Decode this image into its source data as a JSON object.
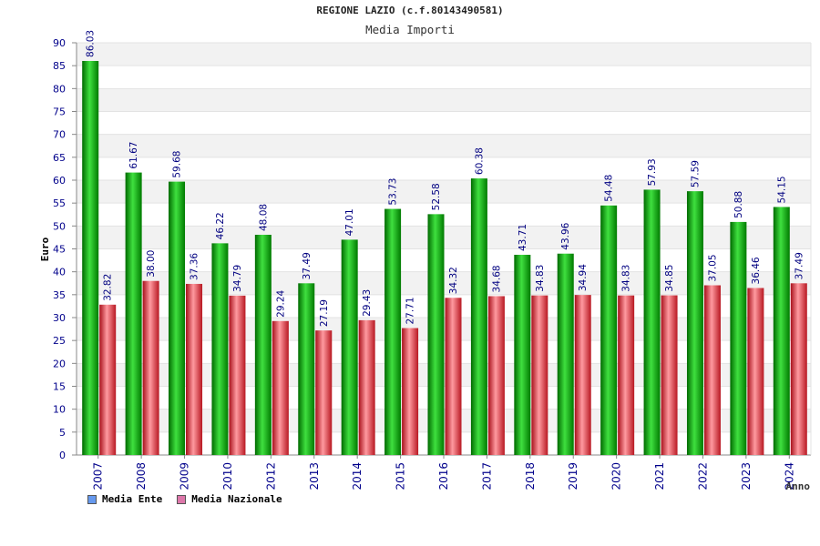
{
  "chart_data": {
    "type": "bar",
    "title": "REGIONE LAZIO (c.f.80143490581)",
    "subtitle": "Media Importi",
    "ylabel": "Euro",
    "xlabel": "Anno",
    "ylim": [
      0,
      90
    ],
    "ytick_step": 5,
    "grid": true,
    "legend_position": "bottom-left",
    "categories": [
      "2007",
      "2008",
      "2009",
      "2010",
      "2012",
      "2013",
      "2014",
      "2015",
      "2016",
      "2017",
      "2018",
      "2019",
      "2020",
      "2021",
      "2022",
      "2023",
      "2024"
    ],
    "series": [
      {
        "name": "Media Ente",
        "color": "#00b000",
        "legend_color": "#6699ee",
        "values": [
          86.03,
          61.67,
          59.68,
          46.22,
          48.08,
          37.49,
          47.01,
          53.73,
          52.58,
          60.38,
          43.71,
          43.96,
          54.48,
          57.93,
          57.59,
          50.88,
          54.15
        ],
        "labels": [
          "86.03",
          "61.67",
          "59.68",
          "46.22",
          "48.08",
          "37.49",
          "47.01",
          "53.73",
          "52.58",
          "60.38",
          "43.71",
          "43.96",
          "54.48",
          "57.93",
          "57.59",
          "50.88",
          "54.15"
        ]
      },
      {
        "name": "Media Nazionale",
        "color": "#e0303a",
        "legend_color": "#dd77aa",
        "values": [
          32.82,
          38.0,
          37.36,
          34.79,
          29.24,
          27.19,
          29.43,
          27.71,
          34.32,
          34.68,
          34.83,
          34.94,
          34.83,
          34.85,
          37.05,
          36.46,
          37.49
        ],
        "labels": [
          "32.82",
          "38.00",
          "37.36",
          "34.79",
          "29.24",
          "27.19",
          "29.43",
          "27.71",
          "34.32",
          "34.68",
          "34.83",
          "34.94",
          "34.83",
          "34.85",
          "37.05",
          "36.46",
          "37.49"
        ]
      }
    ]
  }
}
